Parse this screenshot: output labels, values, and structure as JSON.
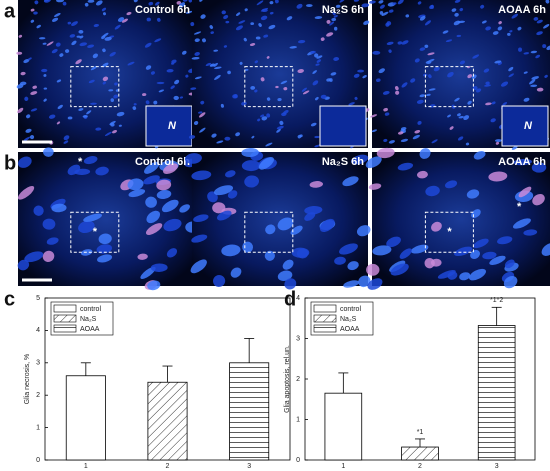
{
  "figure": {
    "panel_labels": [
      "a",
      "b",
      "c",
      "d"
    ],
    "row_a_labels": [
      "Control 6h",
      "Na₂S 6h",
      "AOAA 6h"
    ],
    "row_b_labels": [
      "Control 6h",
      "Na₂S 6h",
      "AOAA 6h"
    ],
    "nucleus_label": "N",
    "asterisk": "*"
  },
  "chart_data": [
    {
      "type": "bar",
      "y_label": "Glia necrosis, %",
      "categories": [
        "1",
        "2",
        "3"
      ],
      "values": [
        2.6,
        2.4,
        3.0
      ],
      "errors": [
        0.4,
        0.5,
        0.75
      ],
      "legend": [
        "control",
        "Na₂S",
        "AOAA"
      ],
      "patterns": [
        "none",
        "diagonal",
        "horizontal"
      ],
      "ylim": [
        0,
        5
      ],
      "yticks": [
        0,
        1,
        2,
        3,
        4,
        5
      ],
      "legend_position": "upper-left"
    },
    {
      "type": "bar",
      "y_label": "Glia apoptosis, rel.un.",
      "categories": [
        "1",
        "2",
        "3"
      ],
      "values": [
        1.65,
        0.32,
        3.32
      ],
      "errors": [
        0.5,
        0.2,
        0.45
      ],
      "annotations": [
        null,
        "*1",
        "*1*2"
      ],
      "legend": [
        "control",
        "Na₂S",
        "AOAA"
      ],
      "patterns": [
        "none",
        "diagonal",
        "horizontal"
      ],
      "ylim": [
        0,
        4
      ],
      "yticks": [
        0,
        1,
        2,
        3,
        4
      ],
      "legend_position": "upper-left"
    }
  ]
}
